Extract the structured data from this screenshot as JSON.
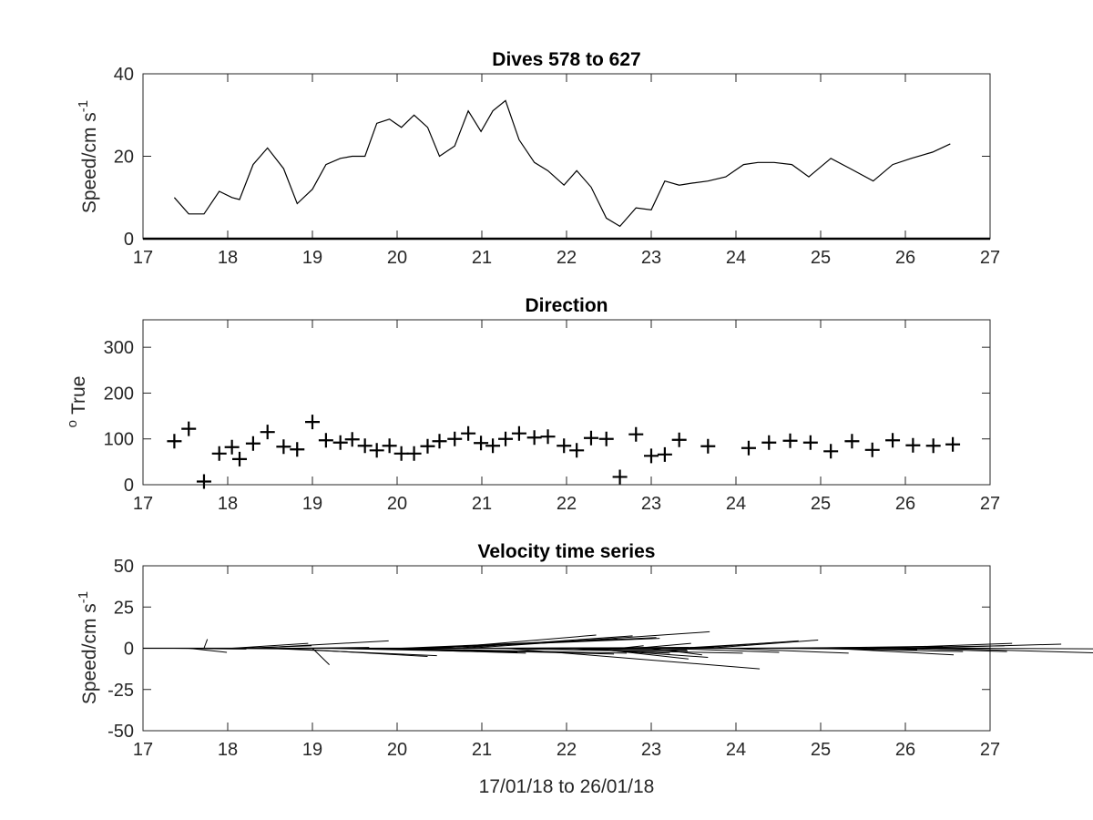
{
  "chart_data": [
    {
      "type": "line",
      "title": "Dives 578 to 627",
      "ylabel": "Speed/cm s",
      "ylabel_sup": "-1",
      "xlim": [
        17,
        27
      ],
      "ylim": [
        0,
        40
      ],
      "xticks": [
        "17",
        "18",
        "19",
        "20",
        "21",
        "22",
        "23",
        "24",
        "25",
        "26",
        "27"
      ],
      "yticks": [
        "0",
        "20",
        "40"
      ],
      "baseline": 0,
      "series": [
        {
          "x": [
            17.37,
            17.54,
            17.72,
            17.9,
            18.05,
            18.14,
            18.3,
            18.47,
            18.66,
            18.82,
            19.0,
            19.16,
            19.33,
            19.47,
            19.62,
            19.76,
            19.91,
            20.05,
            20.2,
            20.36,
            20.5,
            20.68,
            20.84,
            20.99,
            21.13,
            21.28,
            21.44,
            21.62,
            21.78,
            21.97,
            22.12,
            22.29,
            22.47,
            22.63,
            22.82,
            23.0,
            23.16,
            23.33,
            23.49,
            23.67,
            23.88,
            24.09,
            24.26,
            24.45,
            24.66,
            24.86,
            25.12,
            25.35,
            25.62,
            25.85,
            26.07,
            26.32,
            26.53
          ],
          "y": [
            10,
            6,
            6,
            11.5,
            10,
            9.5,
            18,
            22,
            17,
            8.5,
            12,
            18,
            19.5,
            20,
            20,
            28,
            29,
            27,
            30,
            27,
            20,
            22.5,
            31,
            26,
            31,
            33.5,
            24,
            18.5,
            16.5,
            13,
            16.5,
            12.5,
            5,
            3,
            7.5,
            7,
            14,
            13,
            13.5,
            14,
            15,
            18,
            18.5,
            18.5,
            18,
            15,
            19.5,
            17,
            14,
            18,
            19.5,
            21,
            23
          ]
        }
      ]
    },
    {
      "type": "scatter",
      "title": "Direction",
      "ylabel": "True",
      "ylabel_prefix": "o",
      "xlim": [
        17,
        27
      ],
      "ylim": [
        0,
        360
      ],
      "xticks": [
        "17",
        "18",
        "19",
        "20",
        "21",
        "22",
        "23",
        "24",
        "25",
        "26",
        "27"
      ],
      "yticks": [
        "0",
        "100",
        "200",
        "300"
      ],
      "marker": "+",
      "series": [
        {
          "x": [
            17.37,
            17.54,
            17.72,
            17.9,
            18.05,
            18.14,
            18.3,
            18.47,
            18.66,
            18.82,
            19.0,
            19.16,
            19.33,
            19.47,
            19.62,
            19.76,
            19.91,
            20.05,
            20.2,
            20.36,
            20.5,
            20.68,
            20.84,
            20.99,
            21.13,
            21.28,
            21.44,
            21.62,
            21.78,
            21.97,
            22.12,
            22.29,
            22.47,
            22.63,
            22.82,
            23.0,
            23.16,
            23.33,
            23.67,
            24.15,
            24.39,
            24.64,
            24.88,
            25.12,
            25.37,
            25.61,
            25.85,
            26.09,
            26.33,
            26.56
          ],
          "y": [
            95,
            122,
            7,
            68,
            82,
            56,
            90,
            115,
            83,
            77,
            137,
            97,
            92,
            99,
            85,
            75,
            85,
            68,
            68,
            84,
            95,
            100,
            112,
            91,
            85,
            100,
            112,
            103,
            105,
            85,
            75,
            102,
            100,
            17,
            110,
            63,
            66,
            98,
            84,
            80,
            92,
            96,
            92,
            73,
            95,
            76,
            97,
            86,
            85,
            88
          ]
        }
      ]
    },
    {
      "type": "line",
      "title": "Velocity time series",
      "ylabel": "Speed/cm s",
      "ylabel_sup": "-1",
      "xlabel": "17/01/18 to 26/01/18",
      "xlim": [
        17,
        27
      ],
      "ylim": [
        -50,
        50
      ],
      "xticks": [
        "17",
        "18",
        "19",
        "20",
        "21",
        "22",
        "23",
        "24",
        "25",
        "26",
        "27"
      ],
      "yticks": [
        "-50",
        "-25",
        "0",
        "25",
        "50"
      ],
      "stick_plot": true,
      "sticks": [
        {
          "x": 17.37,
          "u": 8.5,
          "v": -0.5
        },
        {
          "x": 17.54,
          "u": 4.5,
          "v": -2.5
        },
        {
          "x": 17.72,
          "u": 0.4,
          "v": 5.5
        },
        {
          "x": 17.9,
          "u": 9.5,
          "v": -0.5
        },
        {
          "x": 18.05,
          "u": 9.0,
          "v": 3.0
        },
        {
          "x": 18.14,
          "u": 8.5,
          "v": 1.5
        },
        {
          "x": 18.3,
          "u": 16.0,
          "v": 4.5
        },
        {
          "x": 18.47,
          "u": 20.0,
          "v": -4.5
        },
        {
          "x": 18.66,
          "u": 17.0,
          "v": -5.0
        },
        {
          "x": 18.82,
          "u": 8.5,
          "v": 0.5
        },
        {
          "x": 19.0,
          "u": 2.0,
          "v": -10.0
        },
        {
          "x": 19.16,
          "u": 18.0,
          "v": -2.0
        },
        {
          "x": 19.33,
          "u": 18.0,
          "v": -1.5
        },
        {
          "x": 19.47,
          "u": 19.5,
          "v": -2.5
        },
        {
          "x": 19.62,
          "u": 19.0,
          "v": -3.0
        },
        {
          "x": 19.76,
          "u": 28.0,
          "v": -3.5
        },
        {
          "x": 19.91,
          "u": 28.0,
          "v": -3.0
        },
        {
          "x": 20.05,
          "u": 25.5,
          "v": 5.5
        },
        {
          "x": 20.2,
          "u": 29.0,
          "v": 6.0
        },
        {
          "x": 20.36,
          "u": 27.0,
          "v": 6.5
        },
        {
          "x": 20.5,
          "u": 18.5,
          "v": 8.0
        },
        {
          "x": 20.68,
          "u": 21.0,
          "v": 7.5
        },
        {
          "x": 20.84,
          "u": 28.5,
          "v": 10.0
        },
        {
          "x": 20.99,
          "u": 24.5,
          "v": 0.5
        },
        {
          "x": 21.13,
          "u": 29.5,
          "v": -3.0
        },
        {
          "x": 21.28,
          "u": 30.0,
          "v": -12.5
        },
        {
          "x": 21.44,
          "u": 23.0,
          "v": 0.5
        },
        {
          "x": 21.62,
          "u": 18.0,
          "v": -1.0
        },
        {
          "x": 21.78,
          "u": 16.5,
          "v": -1.5
        },
        {
          "x": 21.97,
          "u": 12.5,
          "v": -3.0
        },
        {
          "x": 22.12,
          "u": 15.5,
          "v": -5.5
        },
        {
          "x": 22.29,
          "u": 11.5,
          "v": -6.5
        },
        {
          "x": 22.47,
          "u": 5.0,
          "v": 0.5
        },
        {
          "x": 22.63,
          "u": 2.8,
          "v": 1.5
        },
        {
          "x": 22.82,
          "u": 6.5,
          "v": 3.0
        },
        {
          "x": 23.0,
          "u": 6.0,
          "v": -4.0
        },
        {
          "x": 23.16,
          "u": 13.5,
          "v": -2.5
        },
        {
          "x": 23.33,
          "u": 11.5,
          "v": 3.5
        },
        {
          "x": 23.49,
          "u": 12.5,
          "v": 4.5
        },
        {
          "x": 23.67,
          "u": 13.0,
          "v": 5.0
        },
        {
          "x": 23.88,
          "u": 14.5,
          "v": -3.0
        },
        {
          "x": 24.15,
          "u": 14.0,
          "v": 0.5
        },
        {
          "x": 24.39,
          "u": 17.5,
          "v": -0.8
        },
        {
          "x": 24.64,
          "u": 18.0,
          "v": 1.2
        },
        {
          "x": 24.88,
          "u": 18.0,
          "v": -2.0
        },
        {
          "x": 25.12,
          "u": 14.5,
          "v": -4.0
        },
        {
          "x": 25.37,
          "u": 18.0,
          "v": 1.5
        },
        {
          "x": 25.61,
          "u": 16.5,
          "v": 3.0
        },
        {
          "x": 25.85,
          "u": 13.5,
          "v": -2.0
        },
        {
          "x": 26.09,
          "u": 17.5,
          "v": 2.5
        },
        {
          "x": 26.33,
          "u": 20.5,
          "v": -3.0
        },
        {
          "x": 26.56,
          "u": 22.5,
          "v": -0.5
        }
      ]
    }
  ]
}
